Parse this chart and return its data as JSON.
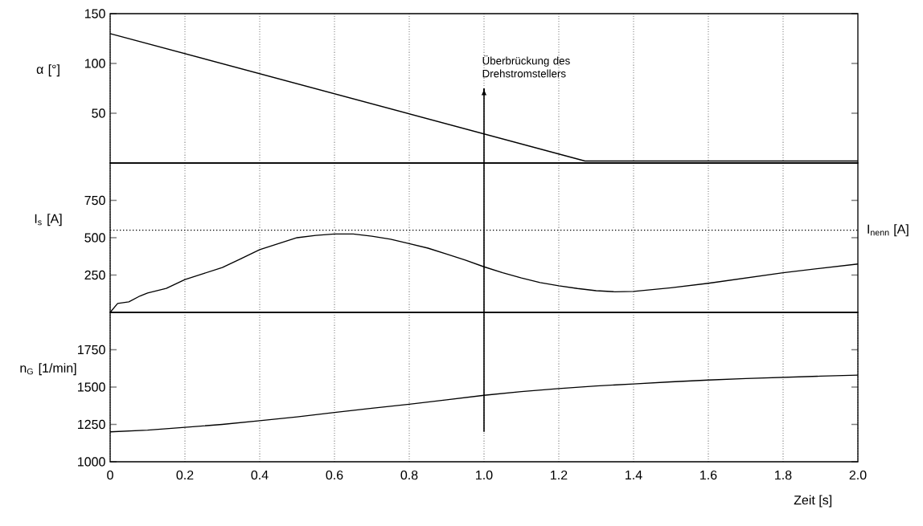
{
  "chart_data": [
    {
      "type": "line",
      "ylabel": "α [°]",
      "xlim": [
        0,
        2.0
      ],
      "ylim": [
        0,
        150
      ],
      "xticks": [
        0,
        0.2,
        0.4,
        0.6,
        0.8,
        1.0,
        1.2,
        1.4,
        1.6,
        1.8
      ],
      "yticks": [
        50,
        100,
        150
      ],
      "grid": "x",
      "tick_labels": "y",
      "series": [
        {
          "color": "#000000",
          "x": [
            0,
            1.27,
            2.0
          ],
          "values": [
            130,
            2,
            2
          ]
        }
      ],
      "ref_lines": [
        {
          "axis": "x",
          "value": 1.0,
          "label": "Überbrückung des Drehstromstellers",
          "color": "#000000"
        }
      ]
    },
    {
      "type": "line",
      "ylabel": "I$_{s}$ [A]",
      "xlim": [
        0,
        2.0
      ],
      "ylim": [
        0,
        1000
      ],
      "xticks": [
        0,
        0.2,
        0.4,
        0.6,
        0.8,
        1.0,
        1.2,
        1.4,
        1.6,
        1.8
      ],
      "yticks": [
        250,
        500,
        750
      ],
      "grid": "x",
      "tick_labels": "y",
      "series": [
        {
          "color": "#000000",
          "x": [
            0,
            0.02,
            0.05,
            0.08,
            0.1,
            0.15,
            0.2,
            0.25,
            0.3,
            0.35,
            0.4,
            0.45,
            0.5,
            0.55,
            0.6,
            0.65,
            0.7,
            0.75,
            0.8,
            0.85,
            0.9,
            0.95,
            1.0,
            1.05,
            1.1,
            1.15,
            1.2,
            1.25,
            1.3,
            1.35,
            1.4,
            1.5,
            1.6,
            1.7,
            1.8,
            1.9,
            2.0
          ],
          "values": [
            0,
            60,
            70,
            110,
            130,
            160,
            220,
            260,
            300,
            360,
            420,
            460,
            500,
            515,
            525,
            525,
            510,
            490,
            460,
            430,
            390,
            350,
            305,
            265,
            230,
            200,
            178,
            160,
            145,
            138,
            140,
            165,
            195,
            230,
            265,
            295,
            324
          ]
        }
      ],
      "ref_lines": [
        {
          "axis": "y",
          "value": 550,
          "label": "I$_{nenn}$ [A]",
          "color": "#000000",
          "line_style": "dotted"
        },
        {
          "axis": "x",
          "value": 1.0,
          "color": "#000000"
        }
      ]
    },
    {
      "type": "line",
      "ylabel": "n$_{G}$ [1/min]",
      "xlabel": "Zeit [s]",
      "xlim": [
        0,
        2.0
      ],
      "ylim": [
        1000,
        2000
      ],
      "xticks": [
        0,
        0.2,
        0.4,
        0.6,
        0.8,
        {
          "value": 1.0,
          "label": "1.0"
        },
        1.2,
        1.4,
        1.6,
        1.8,
        {
          "value": 2.0,
          "label": "2.0"
        }
      ],
      "yticks": [
        1000,
        1250,
        1500,
        1750
      ],
      "grid": "x",
      "series": [
        {
          "color": "#000000",
          "x": [
            0,
            0.1,
            0.2,
            0.3,
            0.4,
            0.5,
            0.6,
            0.7,
            0.8,
            0.9,
            1.0,
            1.1,
            1.2,
            1.3,
            1.4,
            1.5,
            1.6,
            1.7,
            1.8,
            1.9,
            2.0
          ],
          "values": [
            1200,
            1212,
            1230,
            1250,
            1275,
            1300,
            1330,
            1358,
            1385,
            1415,
            1445,
            1470,
            1490,
            1507,
            1521,
            1535,
            1547,
            1557,
            1565,
            1573,
            1580
          ]
        }
      ],
      "ref_lines": [
        {
          "axis": "x",
          "value": 1.0,
          "color": "#000000"
        }
      ]
    }
  ]
}
